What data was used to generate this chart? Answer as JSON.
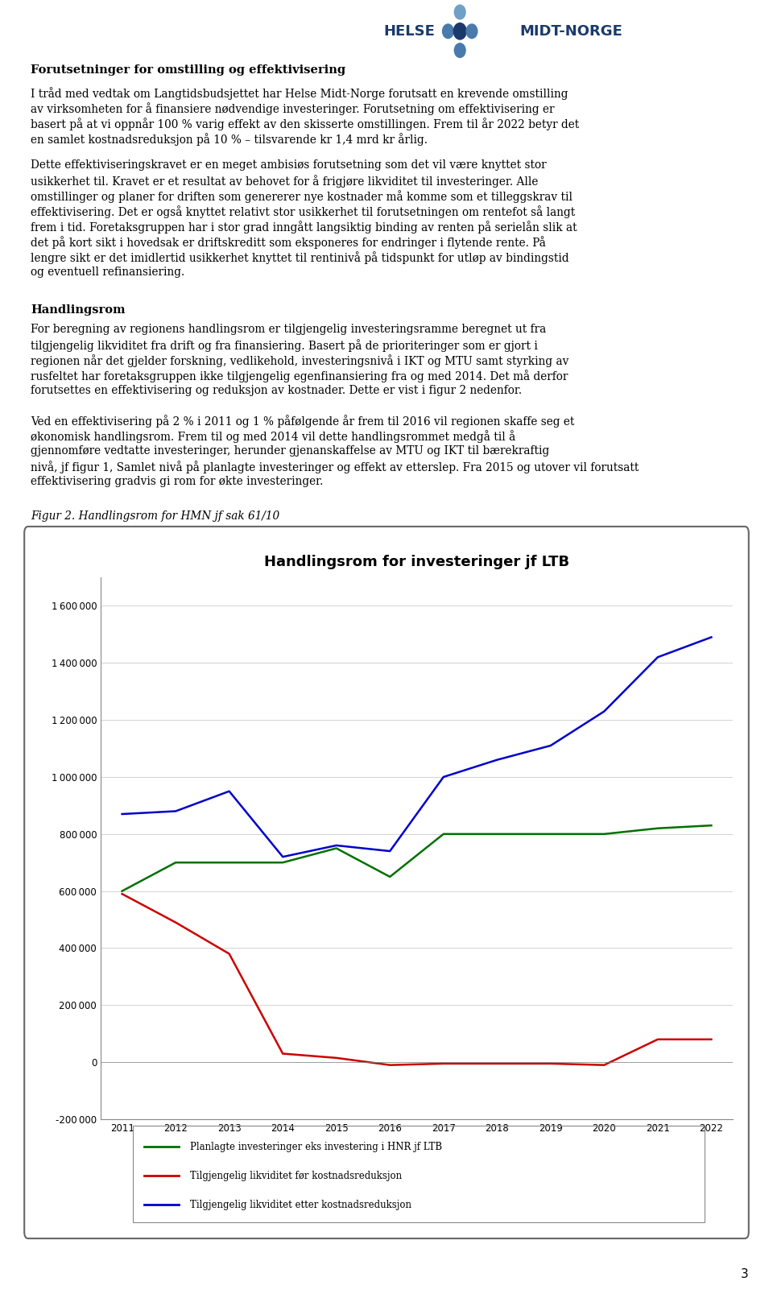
{
  "title": "Handlingsrom for investeringer jf LTB",
  "figure_caption": "Figur 2. Handlingsrom for HMN jf sak 61/10",
  "header_title": "Forutsetninger for omstilling og effektivisering",
  "header2": "Handlingsrom",
  "years": [
    2011,
    2012,
    2013,
    2014,
    2015,
    2016,
    2017,
    2018,
    2019,
    2020,
    2021,
    2022
  ],
  "green_line": [
    600000,
    700000,
    700000,
    700000,
    750000,
    650000,
    800000,
    800000,
    800000,
    800000,
    820000,
    830000
  ],
  "red_line": [
    590000,
    490000,
    380000,
    30000,
    15000,
    -10000,
    -5000,
    -5000,
    -5000,
    -10000,
    80000,
    80000
  ],
  "blue_line": [
    870000,
    880000,
    950000,
    720000,
    760000,
    740000,
    1000000,
    1060000,
    1110000,
    1230000,
    1420000,
    1490000
  ],
  "ylim": [
    -200000,
    1700000
  ],
  "yticks": [
    -200000,
    0,
    200000,
    400000,
    600000,
    800000,
    1000000,
    1200000,
    1400000,
    1600000
  ],
  "green_color": "#007000",
  "red_color": "#CC0000",
  "blue_color": "#0000CC",
  "legend1": "Planlagte investeringer eks investering i HNR jf LTB",
  "legend2": "Tilgjengelig likviditet før kostnadsreduksjon",
  "legend3": "Tilgjengelig likviditet etter kostnadsreduksjon",
  "page_number": "3",
  "body1_line1": "I tråd med vedtak om Langtidsbudsjettet har Helse Midt-Norge forutsatt en krevende omstilling",
  "body1_line2": "av virksomheten for å finansiere nødvendige investeringer. Forutsetning om effektivisering er",
  "body1_line3": "basert på at vi oppnår 100 % varig effekt av den skisserte omstillingen. Frem til år 2022 betyr det",
  "body1_line4": "en samlet kostnadsreduksjon på 10 % – tilsvarende kr 1,4 mrd kr årlig.",
  "body2_line1": "Dette effektiviseringskravet er en meget ambisiøs forutsetning som det vil være knyttet stor",
  "body2_line2": "usikkerhet til. Kravet er et resultat av behovet for å frigjøre likviditet til investeringer. Alle",
  "body2_line3": "omstillinger og planer for driften som genererer nye kostnader må komme som et tilleggskrav til",
  "body2_line4": "effektivisering. Det er også knyttet relativt stor usikkerhet til forutsetningen om rentefot så langt",
  "body2_line5": "frem i tid. Foretaksgruppen har i stor grad inngått langsiktig binding av renten på serielån slik at",
  "body2_line6": "det på kort sikt i hovedsak er driftskreditt som eksponeres for endringer i flytende rente. På",
  "body2_line7": "lengre sikt er det imidlertid usikkerhet knyttet til rentinivå på tidspunkt for utløp av bindingstid",
  "body2_line8": "og eventuell refinansiering.",
  "body3_line1": "For beregning av regionens handlingsrom er tilgjengelig investeringsramme beregnet ut fra",
  "body3_line2": "tilgjengelig likviditet fra drift og fra finansiering. Basert på de prioriteringer som er gjort i",
  "body3_line3": "regionen når det gjelder forskning, vedlikehold, investeringsnivå i IKT og MTU samt styrking av",
  "body3_line4": "rusfeltet har foretaksgruppen ikke tilgjengelig egenfinansiering fra og med 2014. Det må derfor",
  "body3_line5": "forutsettes en effektivisering og reduksjon av kostnader. Dette er vist i figur 2 nedenfor.",
  "body4_line1": "Ved en effektivisering på 2 % i 2011 og 1 % påfølgende år frem til 2016 vil regionen skaffe seg et",
  "body4_line2": "økonomisk handlingsrom. Frem til og med 2014 vil dette handlingsrommet medgå til å",
  "body4_line3": "gjennomføre vedtatte investeringer, herunder gjenanskaffelse av MTU og IKT til bærekraftig",
  "body4_line4": "nivå, jf figur 1, Samlet nivå på planlagte investeringer og effekt av etterslep. Fra 2015 og utover vil forutsatt",
  "body4_line5": "effektivisering gradvis gi rom for økte investeringer.",
  "logo_dot_colors": [
    "#4A7AAC",
    "#1B3A6B",
    "#4A7AAC",
    "#6EA0C8"
  ],
  "logo_text_color": "#1B3A6B"
}
